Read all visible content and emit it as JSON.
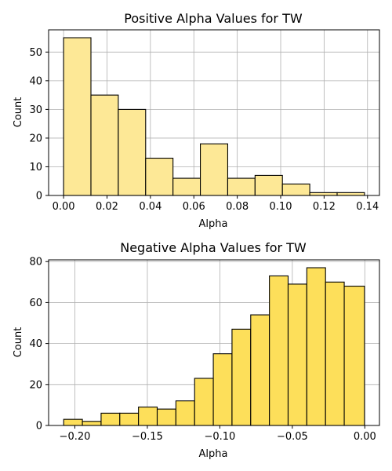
{
  "chart_data": [
    {
      "type": "bar",
      "title": "Positive Alpha Values for TW",
      "xlabel": "Alpha",
      "ylabel": "Count",
      "bar_color": "#fde896",
      "bin_edges": [
        0.0,
        0.0126,
        0.0252,
        0.0378,
        0.0504,
        0.063,
        0.0756,
        0.0882,
        0.1008,
        0.1134,
        0.126,
        0.1386
      ],
      "values": [
        55,
        35,
        30,
        13,
        6,
        18,
        6,
        7,
        4,
        1,
        1
      ],
      "xlim": [
        -0.0069,
        0.1455
      ],
      "ylim": [
        0,
        57.75
      ],
      "xticks": [
        0.0,
        0.02,
        0.04,
        0.06,
        0.08,
        0.1,
        0.12,
        0.14
      ],
      "xtick_labels": [
        "0.00",
        "0.02",
        "0.04",
        "0.06",
        "0.08",
        "0.10",
        "0.12",
        "0.14"
      ],
      "yticks": [
        0,
        10,
        20,
        30,
        40,
        50
      ],
      "ytick_labels": [
        "0",
        "10",
        "20",
        "30",
        "40",
        "50"
      ],
      "grid": true
    },
    {
      "type": "bar",
      "title": "Negative Alpha Values for TW",
      "xlabel": "Alpha",
      "ylabel": "Count",
      "bar_color": "#fddf5a",
      "bin_edges": [
        -0.2077,
        -0.1948,
        -0.1819,
        -0.169,
        -0.1561,
        -0.1432,
        -0.1303,
        -0.1174,
        -0.1045,
        -0.0916,
        -0.0787,
        -0.0658,
        -0.0529,
        -0.04,
        -0.0271,
        -0.0142,
        -0.0002
      ],
      "values": [
        3,
        2,
        6,
        6,
        9,
        8,
        12,
        23,
        35,
        47,
        54,
        73,
        69,
        77,
        70,
        68
      ],
      "xlim": [
        -0.2181,
        0.0101
      ],
      "ylim": [
        0,
        80.85
      ],
      "xticks": [
        -0.2,
        -0.15,
        -0.1,
        -0.05,
        0.0
      ],
      "xtick_labels": [
        "−0.20",
        "−0.15",
        "−0.10",
        "−0.05",
        "0.00"
      ],
      "yticks": [
        0,
        20,
        40,
        60,
        80
      ],
      "ytick_labels": [
        "0",
        "20",
        "40",
        "60",
        "80"
      ],
      "grid": true
    }
  ]
}
